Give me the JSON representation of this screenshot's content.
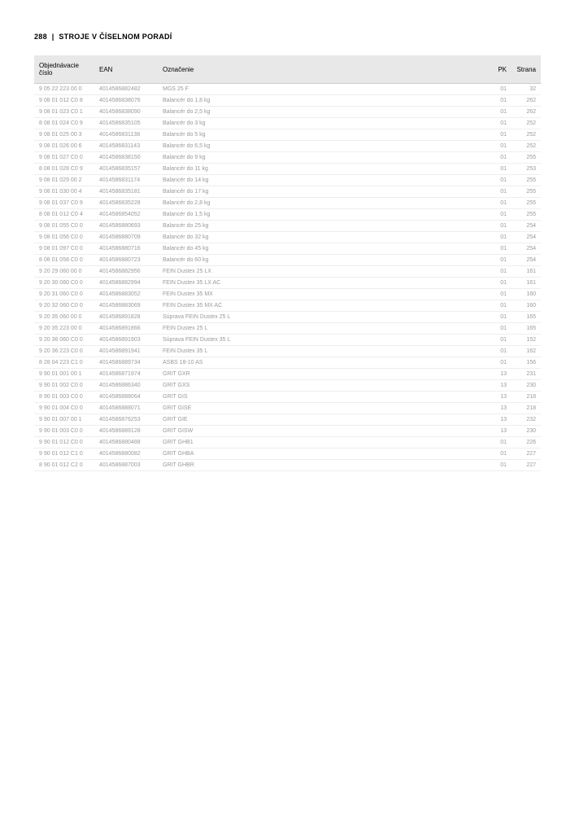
{
  "header": {
    "page_number": "288",
    "separator": "|",
    "title": "STROJE V ČÍSELNOM PORADÍ"
  },
  "table": {
    "columns": [
      "Objednávacie číslo",
      "EAN",
      "Označenie",
      "PK",
      "Strana"
    ],
    "col_align": [
      "left",
      "left",
      "left",
      "right",
      "right"
    ],
    "rows": [
      [
        "9 05 22 223 00 0",
        "4014586882482",
        "MGS 25 F",
        "01",
        "32"
      ],
      [
        "9 08 01 012 C0 8",
        "4014586838076",
        "Balancér do 1,8 kg",
        "01",
        "262"
      ],
      [
        "9 08 01 023 C0 1",
        "4014586838090",
        "Balancér do 2,5 kg",
        "01",
        "262"
      ],
      [
        "8 08 01 024 C0 9",
        "4014586835105",
        "Balancér do 3 kg",
        "01",
        "252"
      ],
      [
        "9 08 01 025 00 3",
        "4014586831138",
        "Balancér do 5 kg",
        "01",
        "252"
      ],
      [
        "9 08 01 026 00 6",
        "4014586831143",
        "Balancér do 6,5 kg",
        "01",
        "252"
      ],
      [
        "9 08 01 027 C0 0",
        "4014586838150",
        "Balancér do 9 kg",
        "01",
        "255"
      ],
      [
        "8 08 01 028 C0 9",
        "4014586835157",
        "Balancér do 11 kg",
        "01",
        "253"
      ],
      [
        "9 08 01 029 00 2",
        "4014586831174",
        "Balancér do 14 kg",
        "01",
        "255"
      ],
      [
        "9 08 01 030 00 4",
        "4014586835181",
        "Balancér do 17 kg",
        "01",
        "255"
      ],
      [
        "9 08 01 037 C0 9",
        "4014586835228",
        "Balancér do 2,8 kg",
        "01",
        "255"
      ],
      [
        "8 08 01 012 C0 4",
        "4014586854052",
        "Balancér do 1,5 kg",
        "01",
        "255"
      ],
      [
        "9 08 01 055 C0 0",
        "4014586880693",
        "Balancér do 25 kg",
        "01",
        "254"
      ],
      [
        "9 08 01 056 C0 0",
        "4014586880709",
        "Balancér do 32 kg",
        "01",
        "254"
      ],
      [
        "9 08 01 097 C0 0",
        "4014586880716",
        "Balancér do 45 kg",
        "01",
        "254"
      ],
      [
        "8 08 01 058 C0 0",
        "4014586880723",
        "Balancér do 60 kg",
        "01",
        "254"
      ],
      [
        "9 20 29 060 00 0",
        "4014586882956",
        "FEIN Dustex 25 LX",
        "01",
        "161"
      ],
      [
        "9 20 30 060 C0 0",
        "4014586882994",
        "FEIN Dustex 35 LX AC",
        "01",
        "161"
      ],
      [
        "9 20 31 060 C0 0",
        "4014586883052",
        "FEIN Dustex 35 MX",
        "01",
        "160"
      ],
      [
        "9 20 32 060 C0 0",
        "4014586883069",
        "FEIN Dustex 35 MX AC",
        "01",
        "160"
      ],
      [
        "9 20 35 060 00 0",
        "4014586891828",
        "Súprava FEIN Dustex 25 L",
        "01",
        "165"
      ],
      [
        "9 20 35 223 00 0",
        "4014586891866",
        "FEIN Dustex 25 L",
        "01",
        "165"
      ],
      [
        "9 20 36 060 C0 0",
        "4014586891903",
        "Súprava FEIN Dustex 35 L",
        "01",
        "152"
      ],
      [
        "9 20 36 223 C0 0",
        "4014586891941",
        "FEIN Dustex 35 L",
        "01",
        "162"
      ],
      [
        "8 28 04 223 C1 0",
        "4014586889734",
        "ASBS 18-10 AS",
        "01",
        "156"
      ],
      [
        "9 90 01 001 00 1",
        "4014586871974",
        "GRIT GXR",
        "13",
        "231"
      ],
      [
        "9 90 01 002 C0 0",
        "4014586886340",
        "GRIT GXS",
        "13",
        "230"
      ],
      [
        "8 90 01 003 C0 0",
        "4014586888064",
        "GRIT GIS",
        "13",
        "218"
      ],
      [
        "9 90 01 004 C0 0",
        "4014586888071",
        "GRIT GISE",
        "13",
        "218"
      ],
      [
        "9 90 01 007 00 1",
        "4014586876253",
        "GRIT GIE",
        "13",
        "232"
      ],
      [
        "9 90 01 003 C0 0",
        "4014586889128",
        "GRIT GISW",
        "13",
        "230"
      ],
      [
        "9 90 01 012 C0 0",
        "4014586880488",
        "GRIT GHB1",
        "01",
        "226"
      ],
      [
        "9 90 01 012 C1 0",
        "4014586880082",
        "GRIT GHBA",
        "01",
        "227"
      ],
      [
        "8 90 01 012 C2 0",
        "4014586887003",
        "GRIT GHBR",
        "01",
        "227"
      ]
    ],
    "header_bg": "#e8e8e8",
    "row_text_color": "#9a9a9a",
    "row_border_color": "#eeeeee",
    "font_size_header": 8,
    "font_size_body": 7
  }
}
